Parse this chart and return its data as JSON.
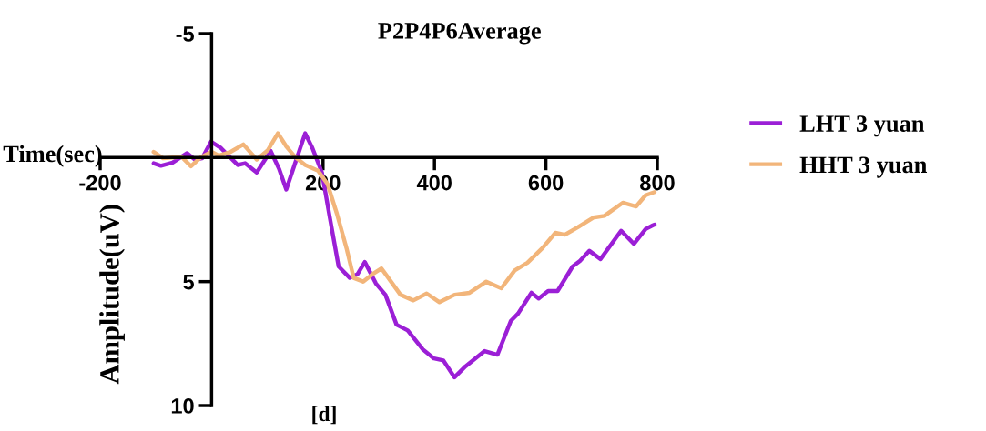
{
  "chart_data": {
    "type": "line",
    "title": "P2P4P6Average",
    "xlabel": "Time(sec)",
    "ylabel": "Amplitude(uV)",
    "annotations": [
      "[d]"
    ],
    "xlim": [
      -200,
      800
    ],
    "xticks": [
      -200,
      200,
      400,
      600,
      800
    ],
    "ylim": [
      10,
      -5
    ],
    "yticks": [
      -5,
      5,
      10
    ],
    "grid": false,
    "legend": "right",
    "marker": "none",
    "line_style": "solid",
    "series": [
      {
        "name": "LHT 3 yuan",
        "color": "#9b1fd6",
        "x": [
          -104,
          -91,
          -70,
          -44,
          -30,
          -17,
          -1,
          17,
          47,
          60,
          81,
          106,
          121,
          134,
          151,
          168,
          181,
          198,
          211,
          228,
          248,
          262,
          275,
          295,
          312,
          332,
          352,
          379,
          399,
          416,
          436,
          456,
          490,
          513,
          537,
          550,
          574,
          587,
          604,
          621,
          648,
          661,
          678,
          698,
          735,
          758,
          779,
          792,
          795
        ],
        "values": [
          0.23,
          0.33,
          0.2,
          -0.18,
          0.08,
          0.03,
          -0.64,
          -0.38,
          0.3,
          0.23,
          0.6,
          -0.27,
          0.45,
          1.29,
          0.15,
          -0.98,
          -0.38,
          0.6,
          2.27,
          4.39,
          4.85,
          4.7,
          4.21,
          5.08,
          5.53,
          6.74,
          6.97,
          7.73,
          8.1,
          8.18,
          8.86,
          8.41,
          7.8,
          7.95,
          6.59,
          6.29,
          5.45,
          5.68,
          5.38,
          5.38,
          4.39,
          4.17,
          3.76,
          4.09,
          2.95,
          3.48,
          2.88,
          2.73,
          2.7
        ]
      },
      {
        "name": "HHT 3 yuan",
        "color": "#f2b57a",
        "x": [
          -104,
          -87,
          -70,
          -54,
          -37,
          -20,
          0,
          13,
          34,
          57,
          81,
          101,
          119,
          134,
          151,
          168,
          191,
          208,
          225,
          242,
          255,
          272,
          289,
          305,
          322,
          339,
          362,
          386,
          409,
          436,
          463,
          493,
          520,
          544,
          567,
          594,
          617,
          634,
          658,
          685,
          705,
          738,
          762,
          779,
          795
        ],
        "values": [
          -0.23,
          0.03,
          0,
          -0.03,
          0.35,
          0,
          -0.23,
          -0.08,
          -0.23,
          -0.53,
          0.08,
          -0.3,
          -0.98,
          -0.45,
          0,
          0.3,
          0.53,
          1.06,
          2.27,
          3.64,
          4.85,
          5.0,
          4.7,
          4.47,
          5.0,
          5.53,
          5.76,
          5.48,
          5.83,
          5.53,
          5.45,
          5.0,
          5.27,
          4.55,
          4.24,
          3.64,
          3.03,
          3.11,
          2.8,
          2.42,
          2.35,
          1.82,
          1.97,
          1.52,
          1.39
        ]
      }
    ]
  }
}
